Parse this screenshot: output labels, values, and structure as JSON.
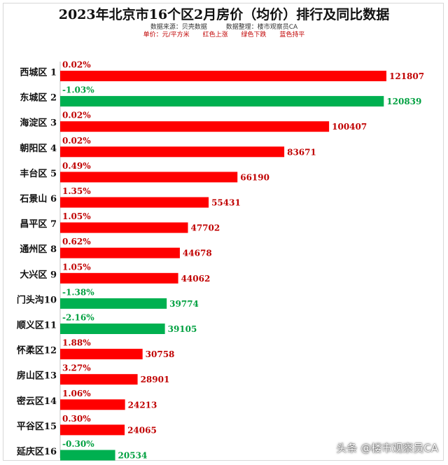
{
  "header": {
    "title": "2023年北京市16个区2月房价（均价）排行及同比数据",
    "source": "数据来源：贝壳数据",
    "compiler": "数据整理：楼市观察员CA",
    "unit": "单价：元/平方米",
    "legend_up": "红色上涨",
    "legend_down": "绿色下跌",
    "legend_flat": "蓝色持平"
  },
  "watermark": "头条 @楼市观察员CA",
  "colors": {
    "up": "#ff0000",
    "down": "#00b050",
    "up_text": "#c00000",
    "down_text": "#00a040"
  },
  "chart_data": {
    "type": "bar",
    "orientation": "horizontal",
    "categories": [
      "西城区 1",
      "东城区 2",
      "海淀区 3",
      "朝阳区 4",
      "丰台区 5",
      "石景山 6",
      "昌平区 7",
      "通州区 8",
      "大兴区 9",
      "门头沟10",
      "顺义区11",
      "怀柔区12",
      "房山区13",
      "密云区14",
      "平谷区15",
      "延庆区16"
    ],
    "values": [
      121807,
      120839,
      100407,
      83671,
      66190,
      55431,
      47702,
      44678,
      44062,
      39774,
      39105,
      30758,
      28901,
      24213,
      24065,
      20534
    ],
    "yoy_change": [
      "0.02%",
      "-1.03%",
      "0.02%",
      "0.02%",
      "0.49%",
      "1.35%",
      "1.05%",
      "0.62%",
      "1.05%",
      "-1.38%",
      "-2.16%",
      "1.88%",
      "3.27%",
      "1.06%",
      "0.30%",
      "-0.30%"
    ],
    "trend": [
      "up",
      "down",
      "up",
      "up",
      "up",
      "up",
      "up",
      "up",
      "up",
      "down",
      "down",
      "up",
      "up",
      "up",
      "up",
      "down"
    ],
    "xlim": [
      0,
      121807
    ],
    "grid": false
  }
}
